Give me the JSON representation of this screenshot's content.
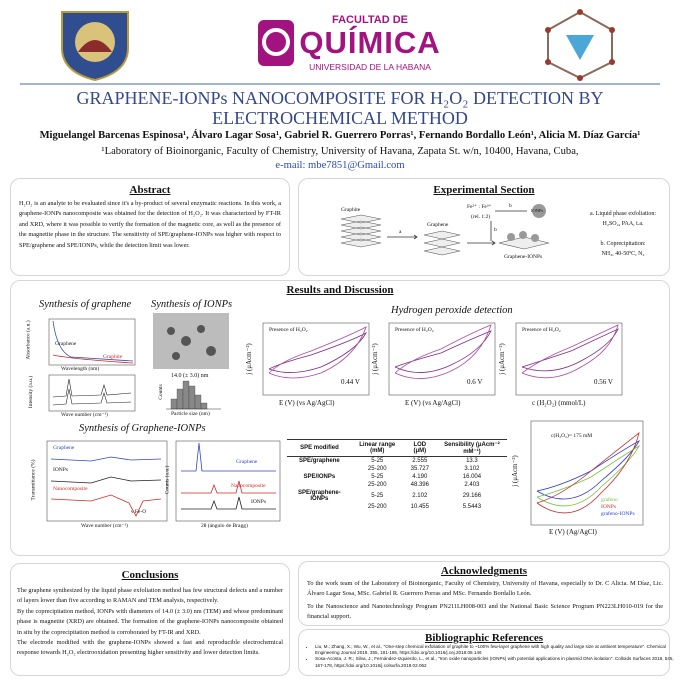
{
  "header": {
    "logo": {
      "line1": "FACULTAD DE",
      "line2": "QUÍMICA",
      "line3": "UNIVERSIDAD DE LA HABANA"
    },
    "title": {
      "line1": "GRAPHENE-IONPs NANOCOMPOSITE FOR H₂O₂ DETECTION BY",
      "line2": "ELECTROCHEMICAL METHOD"
    },
    "authors": "Miguelangel  Barcenas Espinosa¹,  Álvaro Lagar Sosa¹, Gabriel R. Guerrero Porras¹, Fernando Bordallo León¹, Alicia M. Díaz García¹",
    "affiliation": "¹Laboratory of Bioinorganic, Faculty of Chemistry, University of Havana, Zapata St. w/n, 10400, Havana, Cuba,",
    "email": "e-mail: mbe7851@Gmail.com"
  },
  "abstract": {
    "heading": "Abstract",
    "text": "H₂O₂ is an analyte to be evaluated since it's a by-product of several enzymatic reactions. In this work, a graphene-IONPs nanocomposite was obtained for the detection of H₂O₂. It was characterized by FT-IR and XRD, where it was possible to verify the formation of the magnetic core, as well as the presence of the magnetite phase in the structure. The sensitivity of SPE/graphene-IONPs was higher with respect to SPE/graphene and SPE/IONPs, while the detection limit was lower."
  },
  "experimental": {
    "heading": "Experimental Section",
    "graphite": "Graphite",
    "graphene": "Graphene",
    "iron": "Fe²⁺ : Fe³⁺",
    "ratio": "(rel. 1:2)",
    "ionps": "IONPs",
    "product": "Graphene-IONPs",
    "step_a": "a",
    "step_b": "b",
    "step_b2": "b",
    "notes": [
      "a. Liquid phase exfoliation:",
      "H₂SO₄, PAA, t.a.",
      "b. Coprecipitation:",
      "NH₃, 40-50ºC, N₂"
    ]
  },
  "results": {
    "heading": "Results and Discussion",
    "graphene": {
      "heading": "Synthesis of graphene",
      "uv_y": "Absorbance (a.u.)",
      "uv_x": "Wavelength (nm)",
      "uv_l1": "Graphene",
      "uv_l2": "Graphite",
      "ir_y": "Intensity (a.u.)",
      "ir_x": "Wave number (cm⁻¹)"
    },
    "ionps": {
      "heading": "Synthesis of IONPs",
      "size": "14.0 (± 3.0) nm",
      "y": "Counts",
      "x": "Particle size (nm)"
    },
    "h2o2": {
      "heading": "Hydrogen peroxide detection",
      "presence": "Presence of H₂O₂",
      "y": "j (μAcm⁻²)",
      "x1": "E (V) (vs Ag/AgCl)",
      "x2": "E (V) (vs Ag/AgCl)",
      "x3": "c (H₂O₂) (mmol/L)",
      "pot": [
        "0.44 V",
        "0.6 V",
        "0.56 V"
      ],
      "cv4": {
        "conc": "c(H₂O₂)= 175 mM",
        "y": "j (μAcm⁻²)",
        "x": "E (V) (Ag/AgCl)",
        "legend": [
          "grafeno",
          "IONPs",
          "grafeno-IONPs"
        ]
      }
    },
    "nano": {
      "heading": "Synthesis of Graphene-IONPs",
      "ir_labels": [
        "Graphene",
        "IONPs",
        "Nanocomposite"
      ],
      "ir_band": "ν Fe-O",
      "ir_y": "Transmittance (%)",
      "ir_x": "Wave number (cm⁻¹)",
      "xrd_labels": [
        "Graphene",
        "Nanocomposite",
        "IONPs"
      ],
      "xrd_y": "Counts (a.u.)",
      "xrd_x": "2θ (ángulo de Bragg)"
    },
    "table": {
      "header": [
        "SPE modified",
        "Linear range (mM)",
        "LOD (μM)",
        "Sensibility (μAcm⁻² mM⁻¹)"
      ],
      "rows": [
        [
          "SPE/graphene",
          "5-25",
          "2.555",
          "13.3"
        ],
        [
          "",
          "25-200",
          "35.727",
          "3.102"
        ],
        [
          "SPE/IONPs",
          "5-25",
          "4.190",
          "16.004"
        ],
        [
          "",
          "25-200",
          "48.396",
          "2.403"
        ],
        [
          "SPE/graphene-IONPs",
          "5-25",
          "2.102",
          "29.166"
        ],
        [
          "",
          "25-200",
          "10.455",
          "5.5443"
        ]
      ]
    }
  },
  "conclusions": {
    "heading": "Conclusions",
    "paragraphs": [
      "The graphene synthesized by the liquid phase exfoliation method has few structural defects and a number of layers lower than five according to RAMAN and TEM analysis, respectively.",
      "By the coprecipitation method, IONPs with diameters of 14.0 (± 3.0) nm (TEM) and whose predominant phase is magnetite (XRD) are obtained. The formation of the graphene-IONPs nanocomposite obtained in situ by the coprecipitation method is corroborated by FT-IR and XRD.",
      "The electrode modified with the graphene-IONPs showed a fast and reproducible electrochemical response towards H₂O₂ electrooxidation presenting higher sensitivity and lower detection limits."
    ]
  },
  "acknowledgments": {
    "heading": "Acknowledgments",
    "paragraphs": [
      "To the work team of the Laboratory of Bioinorganic, Faculty of Chemistry, University of Havana, especially to Dr. C Alicia. M Díaz, Lic. Álvaro Lagar Sosa, MSc. Gabriel R. Guerrero Porras and MSc. Fernando Bordallo León.",
      "To the Nanoscience and Nanotechnology Program PN211LH008-003 and the National Basic Science Program PN223LH010-019 for the financial support."
    ]
  },
  "references": {
    "heading": "Bibliographic References",
    "items": [
      "Liu, M.; Zhang, X.; Wu, W., et al., \"One-step chemical exfoliation of graphite to ~100% few-layer graphene with high quality and large size at ambient temperature\". Chemical Engineering Journal 2019, 355, 181-185, https://doi.org/10.1016/j.cej.2018.08.146",
      "Sosa-Acosta, J. R.; Silva, J.; Fernández-Izquierdo, L., et al., \"Iron oxide nanoparticles (IONPs) with potential applications in plasmid DNA isolation\". Colloids Surfaces 2018, 545, 167-178, https://doi.org/10.1016/j.colsurfa.2018.02.062"
    ]
  }
}
